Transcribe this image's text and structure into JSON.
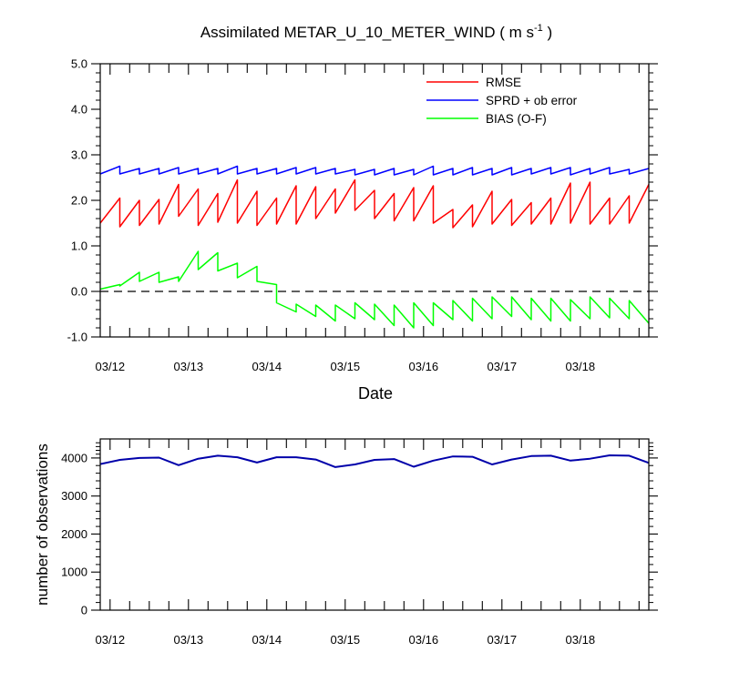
{
  "chart_data": [
    {
      "type": "line",
      "title": "Assimilated METAR_U_10_METER_WIND ( m s",
      "title_exponent": "-1",
      "title_close": " )",
      "xlabel": "Date",
      "ylabel": "",
      "xlim": [
        "03/11 21:00",
        "03/18 21:00"
      ],
      "ylim": [
        -1.0,
        5.0
      ],
      "yticks": [
        "-1.0",
        "0.0",
        "1.0",
        "2.0",
        "3.0",
        "4.0",
        "5.0"
      ],
      "xticklabels": [
        "03/12",
        "03/13",
        "03/14",
        "03/15",
        "03/16",
        "03/17",
        "03/18"
      ],
      "reference_line": 0.0,
      "legend_position": "top-right",
      "series": [
        {
          "name": "RMSE",
          "color": "#ff0000",
          "x": [
            "03/11 21:00",
            "03/12 03:00",
            "03/12 03:00",
            "03/12 09:00",
            "03/12 09:00",
            "03/12 15:00",
            "03/12 15:00",
            "03/12 21:00",
            "03/12 21:00",
            "03/13 03:00",
            "03/13 03:00",
            "03/13 09:00",
            "03/13 09:00",
            "03/13 15:00",
            "03/13 15:00",
            "03/13 21:00",
            "03/13 21:00",
            "03/14 03:00",
            "03/14 03:00",
            "03/14 09:00",
            "03/14 09:00",
            "03/14 15:00",
            "03/14 15:00",
            "03/14 21:00",
            "03/14 21:00",
            "03/15 03:00",
            "03/15 03:00",
            "03/15 09:00",
            "03/15 09:00",
            "03/15 15:00",
            "03/15 15:00",
            "03/15 21:00",
            "03/15 21:00",
            "03/16 03:00",
            "03/16 03:00",
            "03/16 09:00",
            "03/16 09:00",
            "03/16 15:00",
            "03/16 15:00",
            "03/16 21:00",
            "03/16 21:00",
            "03/17 03:00",
            "03/17 03:00",
            "03/17 09:00",
            "03/17 09:00",
            "03/17 15:00",
            "03/17 15:00",
            "03/17 21:00",
            "03/17 21:00",
            "03/18 03:00",
            "03/18 03:00",
            "03/18 09:00",
            "03/18 09:00",
            "03/18 15:00",
            "03/18 15:00",
            "03/18 21:00"
          ],
          "y": [
            1.5,
            2.05,
            1.42,
            2.0,
            1.45,
            2.02,
            1.48,
            2.35,
            1.65,
            2.25,
            1.45,
            2.15,
            1.52,
            2.45,
            1.5,
            2.2,
            1.45,
            2.05,
            1.48,
            2.32,
            1.48,
            2.3,
            1.6,
            2.25,
            1.72,
            2.45,
            1.78,
            2.22,
            1.6,
            2.15,
            1.55,
            2.28,
            1.55,
            2.32,
            1.5,
            1.8,
            1.4,
            1.9,
            1.42,
            2.2,
            1.48,
            2.02,
            1.45,
            1.95,
            1.48,
            2.05,
            1.48,
            2.38,
            1.5,
            2.4,
            1.48,
            2.05,
            1.48,
            2.1,
            1.5,
            2.35
          ]
        },
        {
          "name": "SPRD + ob error",
          "color": "#0000ff",
          "x": [
            "03/11 21:00",
            "03/12 03:00",
            "03/12 03:00",
            "03/12 09:00",
            "03/12 09:00",
            "03/12 15:00",
            "03/12 15:00",
            "03/12 21:00",
            "03/12 21:00",
            "03/13 03:00",
            "03/13 03:00",
            "03/13 09:00",
            "03/13 09:00",
            "03/13 15:00",
            "03/13 15:00",
            "03/13 21:00",
            "03/13 21:00",
            "03/14 03:00",
            "03/14 03:00",
            "03/14 09:00",
            "03/14 09:00",
            "03/14 15:00",
            "03/14 15:00",
            "03/14 21:00",
            "03/14 21:00",
            "03/15 03:00",
            "03/15 03:00",
            "03/15 09:00",
            "03/15 09:00",
            "03/15 15:00",
            "03/15 15:00",
            "03/15 21:00",
            "03/15 21:00",
            "03/16 03:00",
            "03/16 03:00",
            "03/16 09:00",
            "03/16 09:00",
            "03/16 15:00",
            "03/16 15:00",
            "03/16 21:00",
            "03/16 21:00",
            "03/17 03:00",
            "03/17 03:00",
            "03/17 09:00",
            "03/17 09:00",
            "03/17 15:00",
            "03/17 15:00",
            "03/17 21:00",
            "03/17 21:00",
            "03/18 03:00",
            "03/18 03:00",
            "03/18 09:00",
            "03/18 09:00",
            "03/18 15:00",
            "03/18 15:00",
            "03/18 21:00"
          ],
          "y": [
            2.58,
            2.75,
            2.58,
            2.7,
            2.58,
            2.7,
            2.58,
            2.72,
            2.58,
            2.7,
            2.58,
            2.7,
            2.58,
            2.75,
            2.58,
            2.7,
            2.58,
            2.7,
            2.58,
            2.72,
            2.58,
            2.72,
            2.58,
            2.7,
            2.58,
            2.68,
            2.56,
            2.68,
            2.56,
            2.7,
            2.56,
            2.68,
            2.56,
            2.75,
            2.56,
            2.7,
            2.56,
            2.72,
            2.56,
            2.7,
            2.56,
            2.72,
            2.56,
            2.7,
            2.58,
            2.72,
            2.58,
            2.72,
            2.56,
            2.7,
            2.58,
            2.72,
            2.58,
            2.68,
            2.58,
            2.7
          ]
        },
        {
          "name": "BIAS (O-F)",
          "color": "#00ff00",
          "x": [
            "03/11 21:00",
            "03/12 03:00",
            "03/12 03:00",
            "03/12 09:00",
            "03/12 09:00",
            "03/12 15:00",
            "03/12 15:00",
            "03/12 21:00",
            "03/12 21:00",
            "03/13 03:00",
            "03/13 03:00",
            "03/13 09:00",
            "03/13 09:00",
            "03/13 15:00",
            "03/13 15:00",
            "03/13 21:00",
            "03/13 21:00",
            "03/14 03:00",
            "03/14 03:00",
            "03/14 09:00",
            "03/14 09:00",
            "03/14 15:00",
            "03/14 15:00",
            "03/14 21:00",
            "03/14 21:00",
            "03/15 03:00",
            "03/15 03:00",
            "03/15 09:00",
            "03/15 09:00",
            "03/15 15:00",
            "03/15 15:00",
            "03/15 21:00",
            "03/15 21:00",
            "03/16 03:00",
            "03/16 03:00",
            "03/16 09:00",
            "03/16 09:00",
            "03/16 15:00",
            "03/16 15:00",
            "03/16 21:00",
            "03/16 21:00",
            "03/17 03:00",
            "03/17 03:00",
            "03/17 09:00",
            "03/17 09:00",
            "03/17 15:00",
            "03/17 15:00",
            "03/17 21:00",
            "03/17 21:00",
            "03/18 03:00",
            "03/18 03:00",
            "03/18 09:00",
            "03/18 09:00",
            "03/18 15:00",
            "03/18 15:00",
            "03/18 21:00"
          ],
          "y": [
            0.05,
            0.15,
            0.12,
            0.42,
            0.22,
            0.42,
            0.2,
            0.32,
            0.22,
            0.88,
            0.48,
            0.85,
            0.45,
            0.62,
            0.3,
            0.55,
            0.22,
            0.15,
            -0.25,
            -0.45,
            -0.28,
            -0.55,
            -0.3,
            -0.65,
            -0.3,
            -0.6,
            -0.25,
            -0.62,
            -0.28,
            -0.75,
            -0.3,
            -0.8,
            -0.25,
            -0.75,
            -0.25,
            -0.62,
            -0.2,
            -0.65,
            -0.15,
            -0.6,
            -0.12,
            -0.55,
            -0.12,
            -0.62,
            -0.15,
            -0.65,
            -0.15,
            -0.65,
            -0.18,
            -0.6,
            -0.12,
            -0.58,
            -0.15,
            -0.6,
            -0.2,
            -0.7
          ]
        }
      ]
    },
    {
      "type": "line",
      "title": "",
      "xlabel": "",
      "ylabel": "number of observations",
      "xlim": [
        "03/11 21:00",
        "03/18 21:00"
      ],
      "ylim": [
        0,
        4500
      ],
      "yticks": [
        "0",
        "1000",
        "2000",
        "3000",
        "4000"
      ],
      "xticklabels": [
        "03/12",
        "03/13",
        "03/14",
        "03/15",
        "03/16",
        "03/17",
        "03/18"
      ],
      "series": [
        {
          "color": "#0000aa",
          "x": [
            "03/11 21:00",
            "03/12 03:00",
            "03/12 09:00",
            "03/12 15:00",
            "03/12 21:00",
            "03/13 03:00",
            "03/13 09:00",
            "03/13 15:00",
            "03/13 21:00",
            "03/14 03:00",
            "03/14 09:00",
            "03/14 15:00",
            "03/14 21:00",
            "03/15 03:00",
            "03/15 09:00",
            "03/15 15:00",
            "03/15 21:00",
            "03/16 03:00",
            "03/16 09:00",
            "03/16 15:00",
            "03/16 21:00",
            "03/17 03:00",
            "03/17 09:00",
            "03/17 15:00",
            "03/17 21:00",
            "03/18 03:00",
            "03/18 09:00",
            "03/18 15:00",
            "03/18 21:00"
          ],
          "y": [
            3840,
            3950,
            4000,
            4010,
            3810,
            3980,
            4060,
            4020,
            3880,
            4020,
            4020,
            3960,
            3760,
            3830,
            3950,
            3970,
            3770,
            3930,
            4040,
            4030,
            3830,
            3960,
            4050,
            4060,
            3930,
            3980,
            4070,
            4060,
            3870
          ]
        }
      ]
    }
  ]
}
